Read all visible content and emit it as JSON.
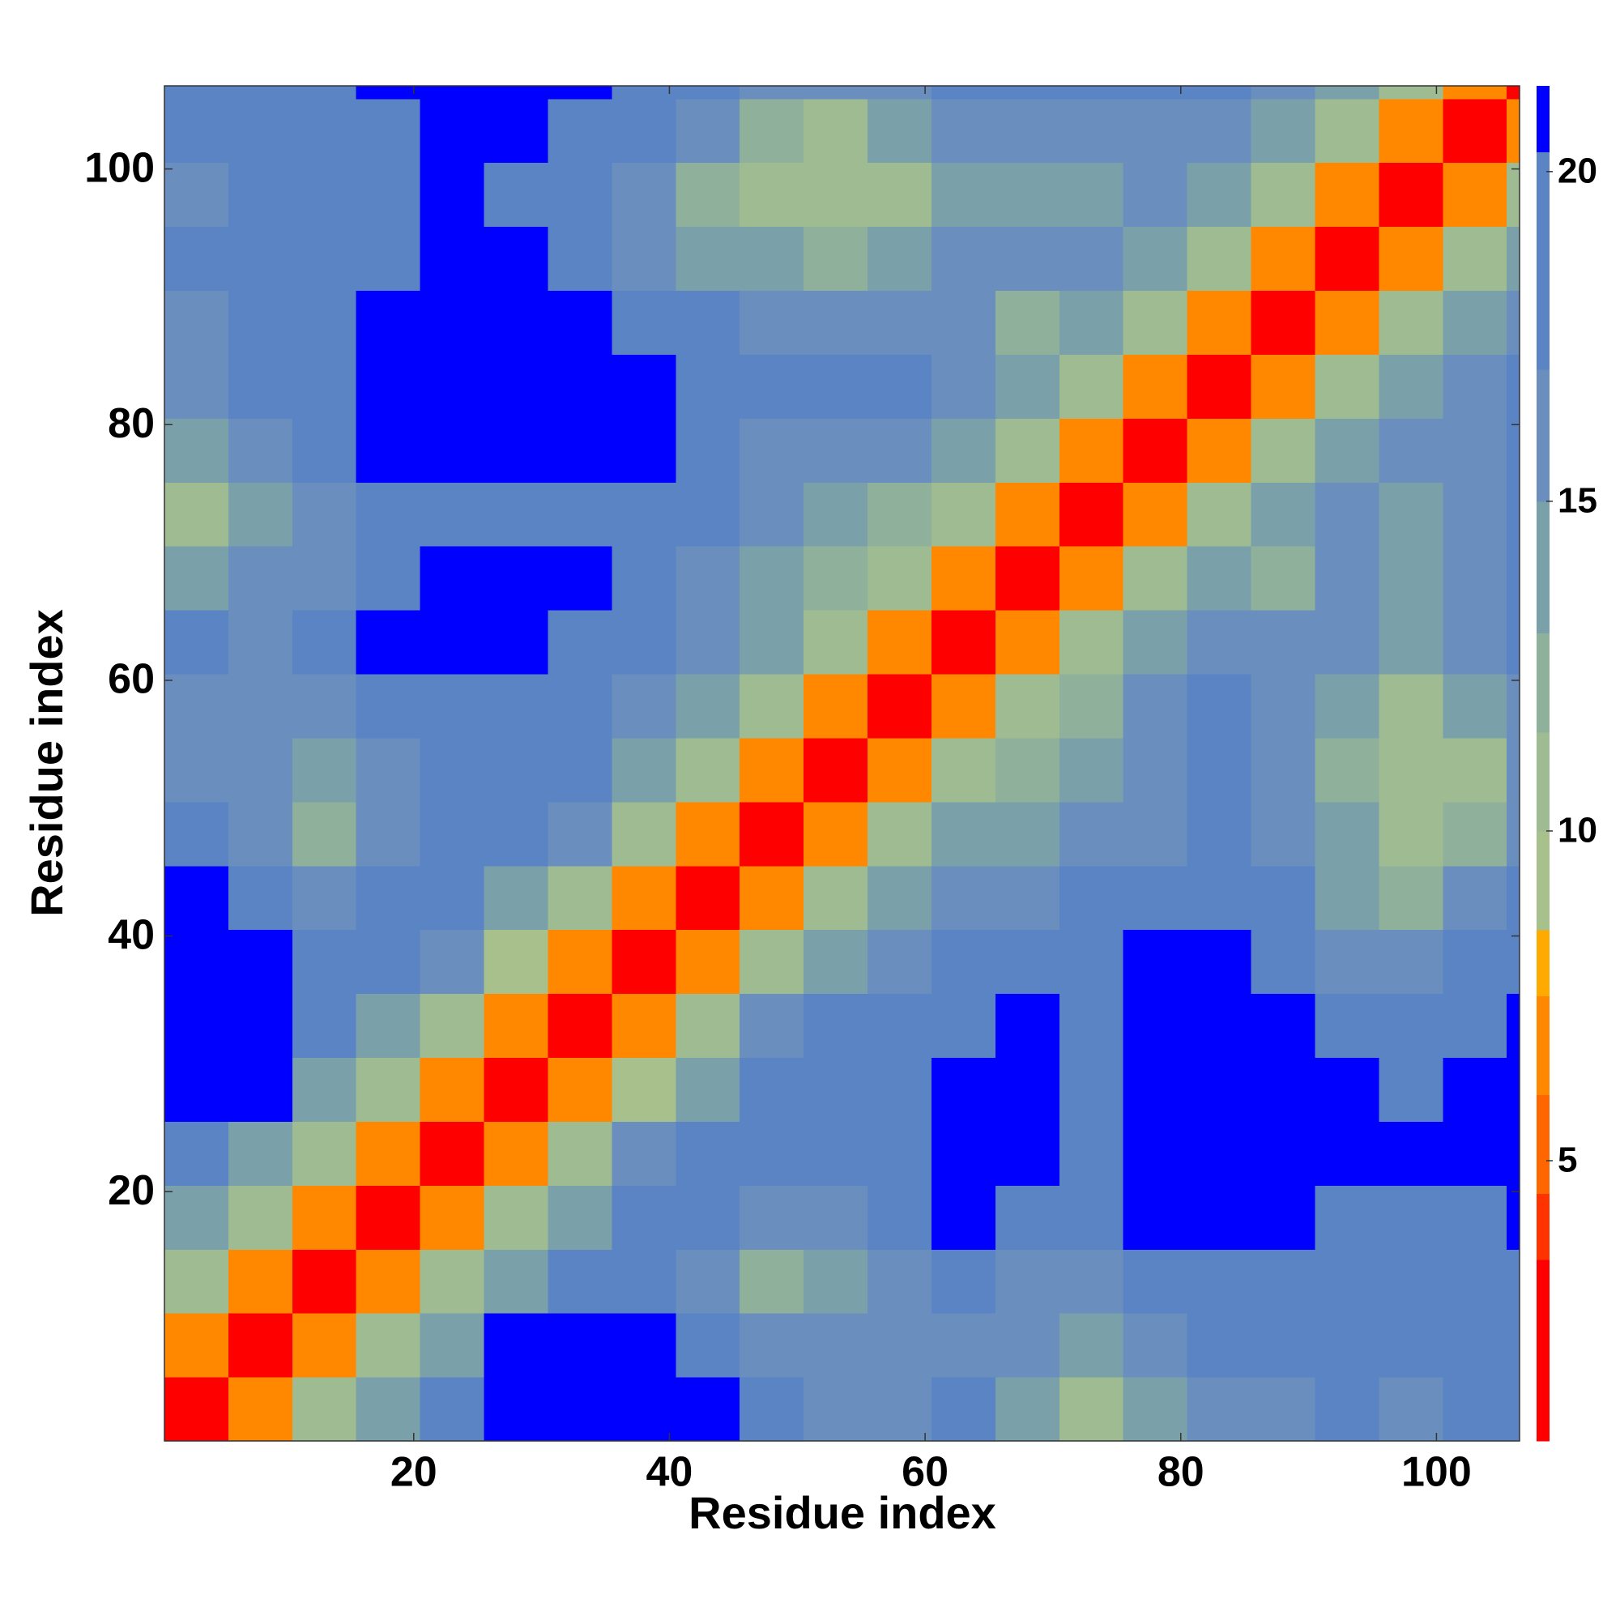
{
  "chart_data": {
    "type": "heatmap",
    "x_label": "Residue index",
    "y_label": "Residue index",
    "bins": [
      0.5,
      5.5,
      10.5,
      15.5,
      20.5,
      25.5,
      30.5,
      35.5,
      40.5,
      45.5,
      50.5,
      55.5,
      60.5,
      65.5,
      70.5,
      75.5,
      80.5,
      85.5,
      90.5,
      95.5,
      100.5,
      105.5,
      106.5
    ],
    "xlim": [
      0.5,
      106.5
    ],
    "ylim": [
      0.5,
      106.5
    ],
    "xticks": [
      20,
      40,
      60,
      80,
      100
    ],
    "yticks": [
      20,
      40,
      60,
      80,
      100
    ],
    "values": [
      [
        3,
        7,
        10,
        13,
        17,
        21,
        21,
        21,
        21,
        17,
        16,
        15,
        17,
        14,
        11,
        14,
        16,
        16,
        18,
        16,
        17,
        18
      ],
      [
        7,
        3,
        7,
        10,
        14,
        21,
        21,
        21,
        19,
        15,
        15,
        16,
        16,
        15,
        13,
        15,
        17,
        17,
        18,
        17,
        17,
        19
      ],
      [
        10,
        7,
        3,
        7,
        10,
        14,
        19,
        18,
        15,
        12,
        13,
        16,
        18,
        16,
        16,
        17,
        19,
        20,
        19,
        18,
        17,
        19
      ],
      [
        13,
        10,
        7,
        3,
        7,
        10,
        14,
        17,
        17,
        15,
        16,
        18,
        21,
        19,
        17,
        21,
        21,
        21,
        20,
        19,
        19,
        21
      ],
      [
        17,
        14,
        10,
        7,
        3,
        7,
        10,
        15,
        18,
        18,
        18,
        20,
        21,
        21,
        18,
        21,
        21,
        21,
        21,
        21,
        21,
        21
      ],
      [
        21,
        21,
        14,
        10,
        7,
        3,
        7,
        9,
        14,
        17,
        18,
        19,
        21,
        21,
        19,
        21,
        21,
        21,
        21,
        20,
        21,
        21
      ],
      [
        21,
        21,
        19,
        14,
        10,
        7,
        3,
        6,
        10,
        15,
        17,
        17,
        20,
        21,
        20,
        21,
        21,
        21,
        20,
        17,
        18,
        21
      ],
      [
        21,
        21,
        18,
        17,
        15,
        9,
        6,
        3,
        6,
        10,
        13,
        15,
        18,
        19,
        19,
        21,
        21,
        18,
        16,
        15,
        17,
        19
      ],
      [
        21,
        19,
        15,
        17,
        18,
        14,
        10,
        6,
        3,
        7,
        10,
        13,
        15,
        16,
        17,
        17,
        18,
        17,
        14,
        12,
        15,
        17
      ],
      [
        17,
        15,
        12,
        15,
        18,
        17,
        15,
        10,
        7,
        3,
        7,
        10,
        13,
        14,
        15,
        16,
        17,
        16,
        13,
        11,
        12,
        16
      ],
      [
        16,
        15,
        13,
        16,
        18,
        18,
        17,
        13,
        10,
        7,
        3,
        7,
        10,
        12,
        14,
        16,
        17,
        15,
        12,
        10,
        11,
        15
      ],
      [
        15,
        16,
        16,
        18,
        20,
        19,
        17,
        15,
        13,
        10,
        7,
        3,
        7,
        10,
        12,
        15,
        17,
        15,
        13,
        11,
        13,
        15
      ],
      [
        17,
        16,
        18,
        21,
        21,
        21,
        20,
        18,
        15,
        13,
        10,
        7,
        3,
        7,
        10,
        13,
        15,
        15,
        16,
        14,
        15,
        17
      ],
      [
        14,
        15,
        16,
        19,
        21,
        21,
        21,
        19,
        16,
        14,
        12,
        10,
        7,
        3,
        7,
        10,
        13,
        12,
        15,
        13,
        15,
        17
      ],
      [
        11,
        13,
        16,
        17,
        18,
        19,
        20,
        19,
        17,
        15,
        14,
        12,
        10,
        7,
        3,
        7,
        10,
        13,
        15,
        14,
        15,
        17
      ],
      [
        14,
        15,
        17,
        21,
        21,
        21,
        21,
        21,
        17,
        16,
        16,
        15,
        13,
        10,
        7,
        3,
        7,
        10,
        13,
        15,
        16,
        18
      ],
      [
        16,
        17,
        19,
        21,
        21,
        21,
        21,
        21,
        18,
        17,
        17,
        17,
        15,
        13,
        10,
        7,
        3,
        7,
        10,
        13,
        15,
        17
      ],
      [
        16,
        17,
        20,
        21,
        21,
        21,
        21,
        18,
        17,
        16,
        15,
        15,
        15,
        12,
        13,
        10,
        7,
        3,
        7,
        10,
        13,
        15
      ],
      [
        18,
        18,
        19,
        20,
        21,
        21,
        20,
        16,
        14,
        13,
        12,
        13,
        16,
        15,
        15,
        13,
        10,
        7,
        3,
        7,
        10,
        13
      ],
      [
        16,
        17,
        18,
        19,
        21,
        20,
        17,
        15,
        12,
        11,
        10,
        11,
        14,
        13,
        14,
        15,
        13,
        10,
        7,
        3,
        7,
        10
      ],
      [
        17,
        17,
        17,
        19,
        21,
        21,
        18,
        17,
        15,
        12,
        11,
        13,
        15,
        15,
        15,
        16,
        15,
        13,
        10,
        7,
        3,
        6
      ],
      [
        18,
        19,
        19,
        21,
        21,
        21,
        21,
        19,
        17,
        16,
        15,
        15,
        17,
        17,
        17,
        18,
        17,
        15,
        13,
        10,
        6,
        3
      ]
    ],
    "colorbar": {
      "bounds": [
        0.75,
        3.5,
        4.5,
        6,
        7.5,
        8.5,
        10,
        11.5,
        13,
        15,
        17,
        20.3,
        21.3
      ],
      "colors": [
        "#ff0000",
        "#ff3300",
        "#ff6600",
        "#ff8800",
        "#ffaa00",
        "#a7c08c",
        "#9ebb92",
        "#8fb09a",
        "#7aa0aa",
        "#6a8fbf",
        "#5b84c4",
        "#0000ff"
      ],
      "ticks": [
        5,
        10,
        15,
        20
      ]
    }
  }
}
